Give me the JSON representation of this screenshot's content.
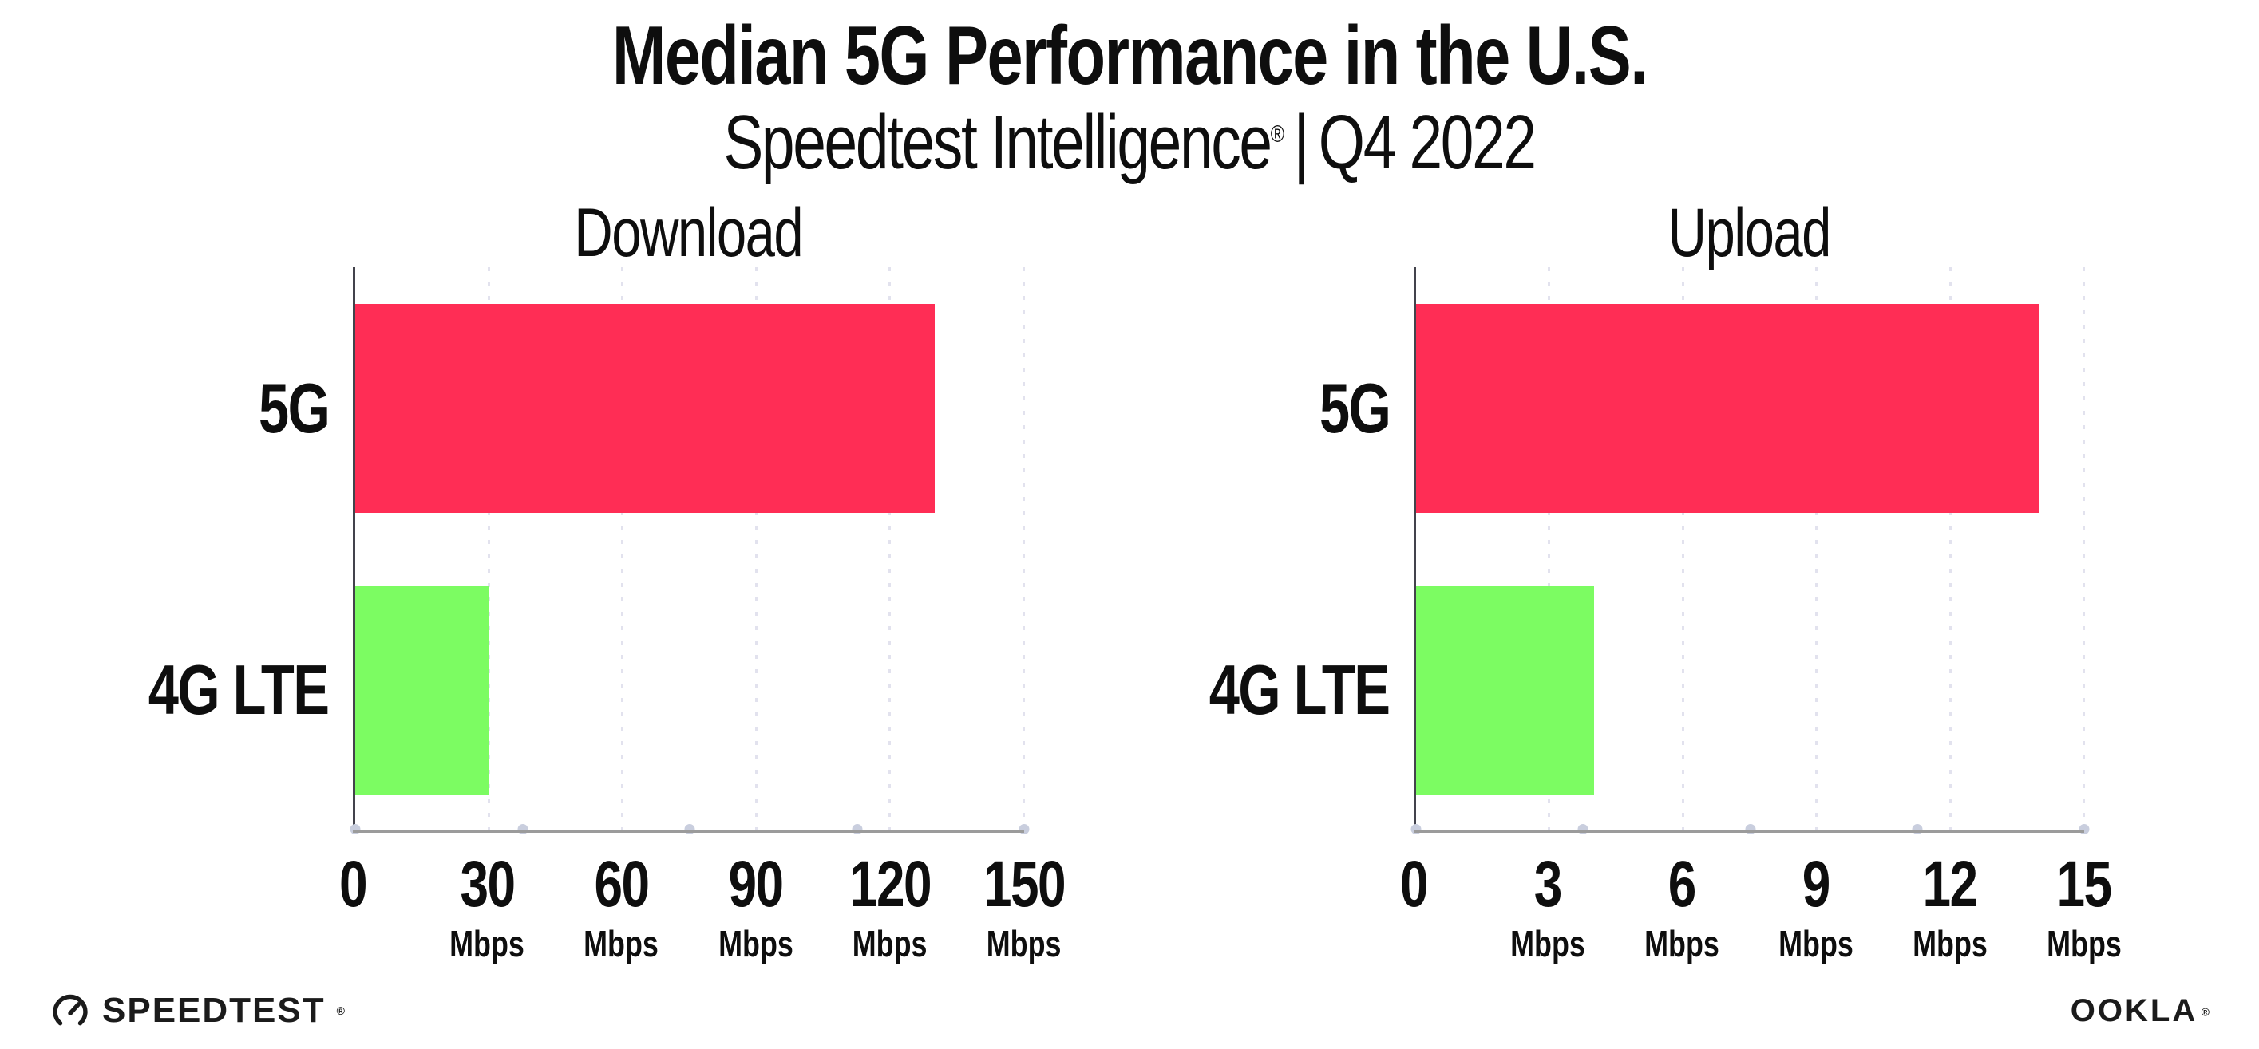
{
  "header": {
    "title": "Median 5G Performance in the U.S.",
    "subtitle_brand": "Speedtest Intelligence",
    "subtitle_reg": "®",
    "subtitle_separator": "|",
    "subtitle_period": "Q4 2022"
  },
  "chart_data": [
    {
      "type": "bar",
      "orientation": "horizontal",
      "title": "Download",
      "categories": [
        "5G",
        "4G LTE"
      ],
      "values": [
        130,
        30
      ],
      "unit": "Mbps",
      "xlim": [
        0,
        150
      ],
      "xticks": [
        0,
        30,
        60,
        90,
        120,
        150
      ],
      "bar_colors": [
        "#FF2D55",
        "#7CFC62"
      ],
      "grid": "dotted-vertical-at-ticks",
      "legend": "none"
    },
    {
      "type": "bar",
      "orientation": "horizontal",
      "title": "Upload",
      "categories": [
        "5G",
        "4G LTE"
      ],
      "values": [
        14,
        4
      ],
      "unit": "Mbps",
      "xlim": [
        0,
        15
      ],
      "xticks": [
        0,
        3,
        6,
        9,
        12,
        15
      ],
      "bar_colors": [
        "#FF2D55",
        "#7CFC62"
      ],
      "grid": "dotted-vertical-at-ticks",
      "legend": "none"
    }
  ],
  "footer": {
    "speedtest_label": "SPEEDTEST",
    "speedtest_reg": "®",
    "ookla_label": "OOKLA",
    "ookla_reg": "®"
  },
  "colors": {
    "bar_5g": "#FF2D55",
    "bar_4g_lte": "#7CFC62",
    "axis_line": "#9b9b9b",
    "left_spine": "#43434c",
    "gridline": "#e2e2ee",
    "axis_quarter_dot": "#c9cede",
    "text": "#0e0e0e"
  }
}
